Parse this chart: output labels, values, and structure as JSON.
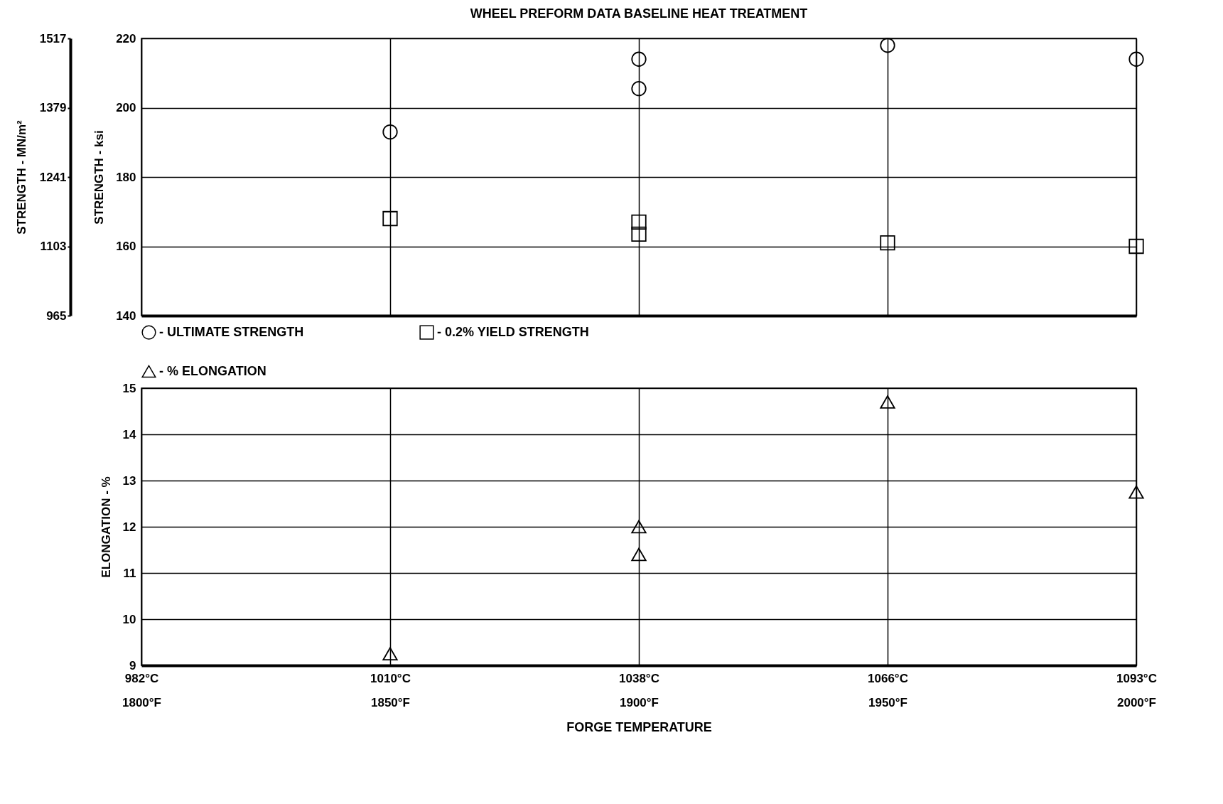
{
  "chart_data": [
    {
      "type": "scatter",
      "title": "WHEEL PREFORM DATA    BASELINE HEAT TREATMENT",
      "ylabel": "STRENGTH - ksi",
      "y2label": "STRENGTH - MN/m²",
      "categories": [
        "982°C\n1800°F",
        "1010°C\n1850°F",
        "1038°C\n1900°F",
        "1066°C\n1950°F",
        "1093°C\n2000°F"
      ],
      "series": [
        {
          "name": "- ULTIMATE STRENGTH",
          "color": "#000000",
          "marker": "circle",
          "x": [
            "1010°C\n1850°F",
            "1038°C\n1900°F",
            "1038°C\n1900°F",
            "1066°C\n1950°F",
            "1093°C\n2000°F"
          ],
          "values": [
            193,
            214,
            205.5,
            218,
            214
          ]
        },
        {
          "name": "- 0.2% YIELD STRENGTH",
          "color": "#000000",
          "marker": "square",
          "x": [
            "1010°C\n1850°F",
            "1038°C\n1900°F",
            "1038°C\n1900°F",
            "1066°C\n1950°F",
            "1093°C\n2000°F"
          ],
          "values": [
            168,
            167,
            163.5,
            161,
            160
          ]
        }
      ],
      "ylim": [
        140,
        220
      ],
      "yticks": [
        140,
        160,
        180,
        200,
        220
      ],
      "y2lim": [
        965,
        1517
      ],
      "y2ticks": [
        965,
        1103,
        1241,
        1379,
        1517
      ],
      "grid": true,
      "legend": "bottom",
      "tick_labels": "y"
    },
    {
      "type": "scatter",
      "xlabel": "FORGE TEMPERATURE",
      "ylabel": "ELONGATION - %",
      "categories": [
        "982°C\n1800°F",
        "1010°C\n1850°F",
        "1038°C\n1900°F",
        "1066°C\n1950°F",
        "1093°C\n2000°F"
      ],
      "series": [
        {
          "name": "- % ELONGATION",
          "color": "#000000",
          "marker": "triangle",
          "x": [
            "1010°C\n1850°F",
            "1038°C\n1900°F",
            "1038°C\n1900°F",
            "1066°C\n1950°F",
            "1093°C\n2000°F"
          ],
          "values": [
            9.25,
            12,
            11.4,
            14.7,
            12.75
          ]
        }
      ],
      "ylim": [
        9,
        15
      ],
      "yticks": [
        9,
        10,
        11,
        12,
        13,
        14,
        15
      ],
      "grid": true,
      "legend": "top"
    }
  ]
}
